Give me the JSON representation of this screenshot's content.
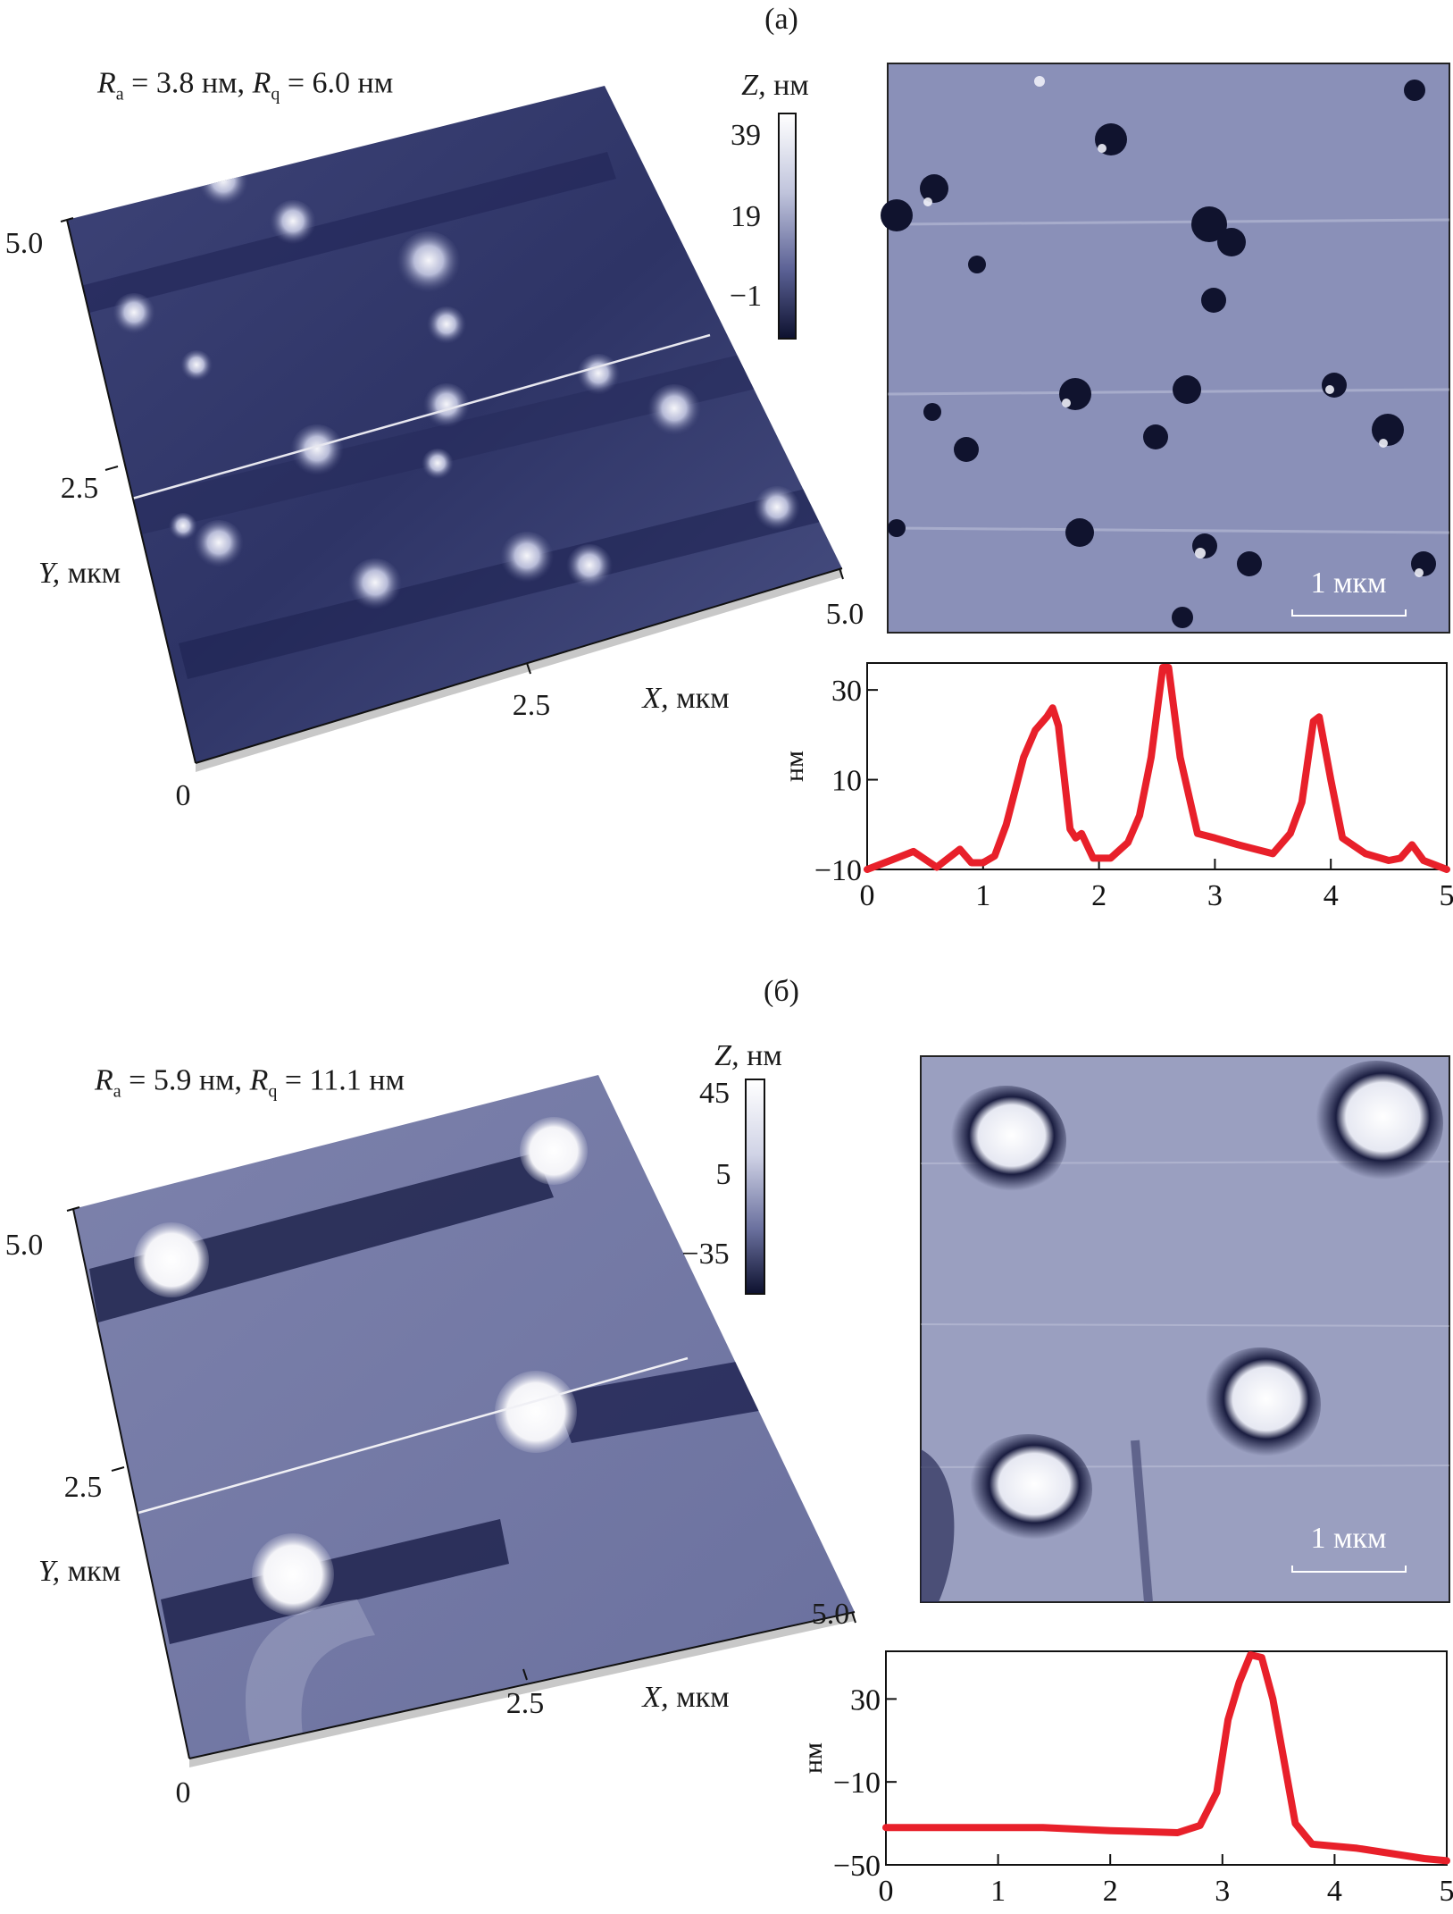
{
  "panels": [
    {
      "label": "(a)",
      "roughness": {
        "ra_symbol": "R",
        "ra_sub": "a",
        "ra_value": "= 3.8 нм,",
        "rq_symbol": "R",
        "rq_sub": "q",
        "rq_value": "= 6.0 нм"
      },
      "colorbar": {
        "title_italic": "Z,",
        "title_unit": "нм",
        "ticks": [
          "39",
          "19",
          "−1"
        ]
      },
      "axes3d": {
        "y_ticks": [
          "5.0",
          "2.5"
        ],
        "y_label_italic": "Y,",
        "y_label_unit": "мкм",
        "origin": "0",
        "x_ticks": [
          "2.5",
          "5.0"
        ],
        "x_label_italic": "X,",
        "x_label_unit": "мкм"
      },
      "scale_bar": "1 мкм"
    },
    {
      "label": "(б)",
      "roughness": {
        "ra_symbol": "R",
        "ra_sub": "a",
        "ra_value": "= 5.9 нм,",
        "rq_symbol": "R",
        "rq_sub": "q",
        "rq_value": "= 11.1 нм"
      },
      "colorbar": {
        "title_italic": "Z,",
        "title_unit": "нм",
        "ticks": [
          "45",
          "5",
          "−35"
        ]
      },
      "axes3d": {
        "y_ticks": [
          "5.0",
          "2.5"
        ],
        "y_label_italic": "Y,",
        "y_label_unit": "мкм",
        "origin": "0",
        "x_ticks": [
          "2.5",
          "5.0"
        ],
        "x_label_italic": "X,",
        "x_label_unit": "мкм"
      },
      "scale_bar": "1 мкм"
    }
  ],
  "colors": {
    "profile_line": "#e8202a",
    "afm_dark": "#1c1f4a",
    "afm_mid": "#5a6094",
    "afm_light": "#f4f4f8"
  },
  "chart_data": [
    {
      "type": "line",
      "title": "",
      "xlabel": "",
      "ylabel": "нм",
      "xlim": [
        0,
        5
      ],
      "ylim": [
        -10,
        36
      ],
      "x_ticks": [
        "0",
        "1",
        "2",
        "3",
        "4",
        "5"
      ],
      "y_ticks": [
        "−10",
        "10",
        "30"
      ],
      "y_tick_values": [
        -10,
        10,
        30
      ],
      "grid": false,
      "series": [
        {
          "x": [
            0,
            0.2,
            0.4,
            0.6,
            0.8,
            0.9,
            1.0,
            1.1,
            1.2,
            1.35,
            1.45,
            1.55,
            1.6,
            1.65,
            1.75,
            1.8,
            1.85,
            1.95,
            2.1,
            2.25,
            2.35,
            2.45,
            2.55,
            2.6,
            2.7,
            2.85,
            3.0,
            3.2,
            3.5,
            3.65,
            3.75,
            3.85,
            3.9,
            4.0,
            4.1,
            4.3,
            4.5,
            4.6,
            4.7,
            4.8,
            5.0
          ],
          "y": [
            -10,
            -8,
            -6,
            -9.5,
            -5.5,
            -8.5,
            -8.5,
            -7,
            0,
            15,
            21,
            24,
            26,
            22,
            -1,
            -3,
            -2,
            -7.5,
            -7.5,
            -4,
            2,
            15,
            35,
            35,
            15,
            -2,
            -3,
            -4.5,
            -6.5,
            -2,
            5,
            23,
            24,
            10,
            -3,
            -6.5,
            -8,
            -7.5,
            -4.5,
            -8,
            -10
          ]
        }
      ]
    },
    {
      "type": "line",
      "title": "",
      "xlabel": "",
      "ylabel": "нм",
      "xlim": [
        0,
        5
      ],
      "ylim": [
        -50,
        53
      ],
      "x_ticks": [
        "0",
        "1",
        "2",
        "3",
        "4",
        "5"
      ],
      "y_ticks": [
        "−50",
        "−10",
        "30"
      ],
      "y_tick_values": [
        -50,
        -10,
        30
      ],
      "grid": false,
      "series": [
        {
          "x": [
            0,
            1.4,
            2.0,
            2.6,
            2.8,
            2.95,
            3.05,
            3.15,
            3.25,
            3.35,
            3.45,
            3.55,
            3.65,
            3.8,
            4.2,
            4.8,
            5.0
          ],
          "y": [
            -32,
            -32,
            -33.5,
            -34.5,
            -31,
            -15,
            20,
            38,
            52,
            50,
            30,
            0,
            -30,
            -40,
            -42,
            -47,
            -48
          ]
        }
      ]
    }
  ]
}
